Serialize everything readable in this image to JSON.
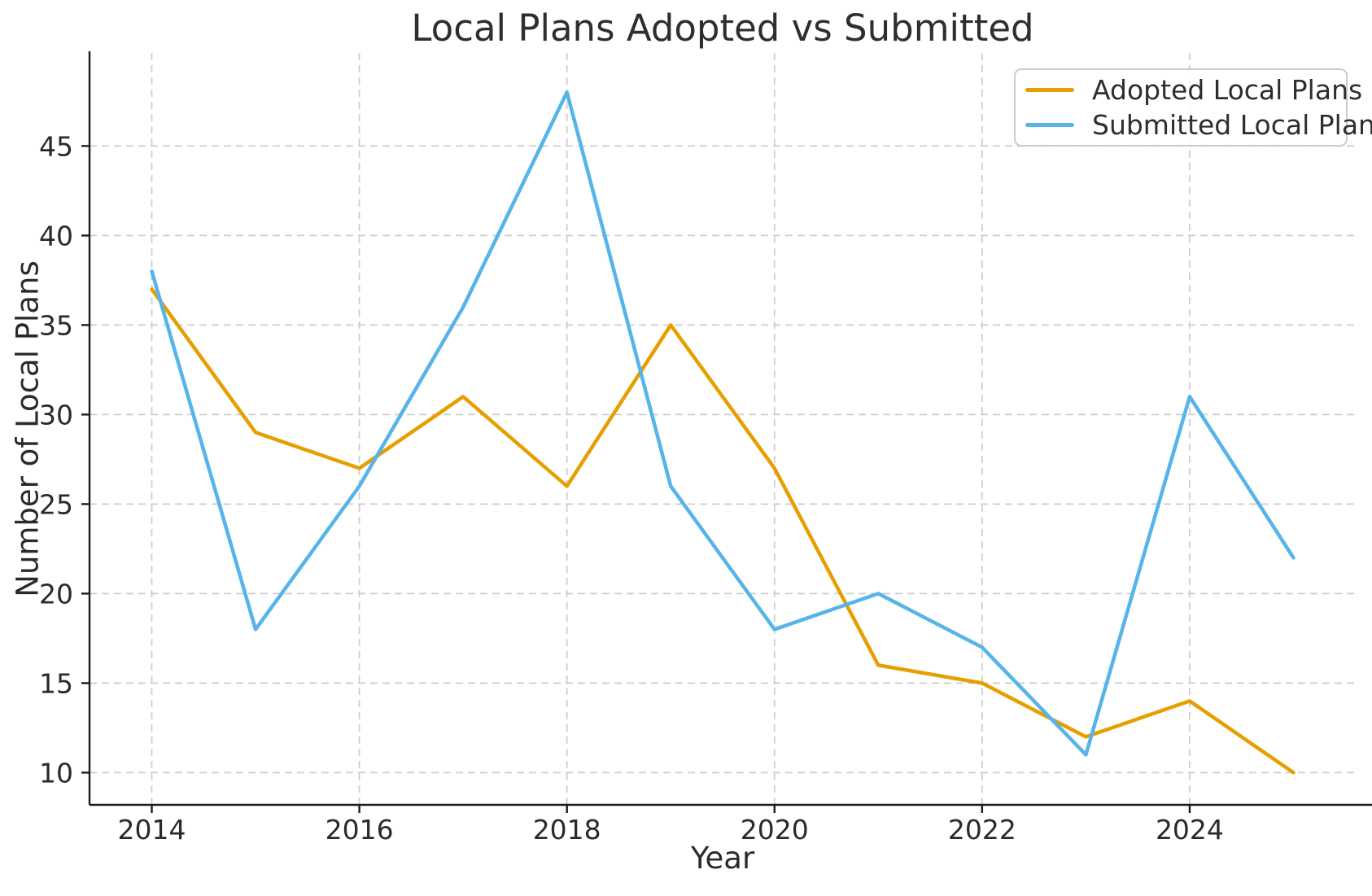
{
  "figure": {
    "background": "#ffffff",
    "text_color": "#2a2a2a",
    "grid_color": "#cccccc",
    "spine_color": "#1c1c1c"
  },
  "chart_data": {
    "type": "line",
    "title": "Local Plans Adopted vs Submitted",
    "xlabel": "Year",
    "ylabel": "Number of Local Plans",
    "x": [
      2014,
      2015,
      2016,
      2017,
      2018,
      2019,
      2020,
      2021,
      2022,
      2023,
      2024,
      2025
    ],
    "series": [
      {
        "name": "Adopted Local Plans",
        "color": "#E69F00",
        "values": [
          37,
          29,
          27,
          31,
          26,
          35,
          27,
          16,
          15,
          12,
          14,
          10
        ]
      },
      {
        "name": "Submitted Local Plans",
        "color": "#56B4E9",
        "values": [
          38,
          18,
          26,
          36,
          48,
          26,
          18,
          20,
          17,
          11,
          31,
          22
        ]
      }
    ],
    "xticks": [
      2014,
      2016,
      2018,
      2020,
      2022,
      2024
    ],
    "yticks": [
      10,
      15,
      20,
      25,
      30,
      35,
      40,
      45
    ],
    "xlim": [
      2013.4,
      2025.6
    ],
    "ylim": [
      8.2,
      50.2
    ],
    "grid": true,
    "grid_style": "dashed",
    "legend_position": "upper right"
  }
}
